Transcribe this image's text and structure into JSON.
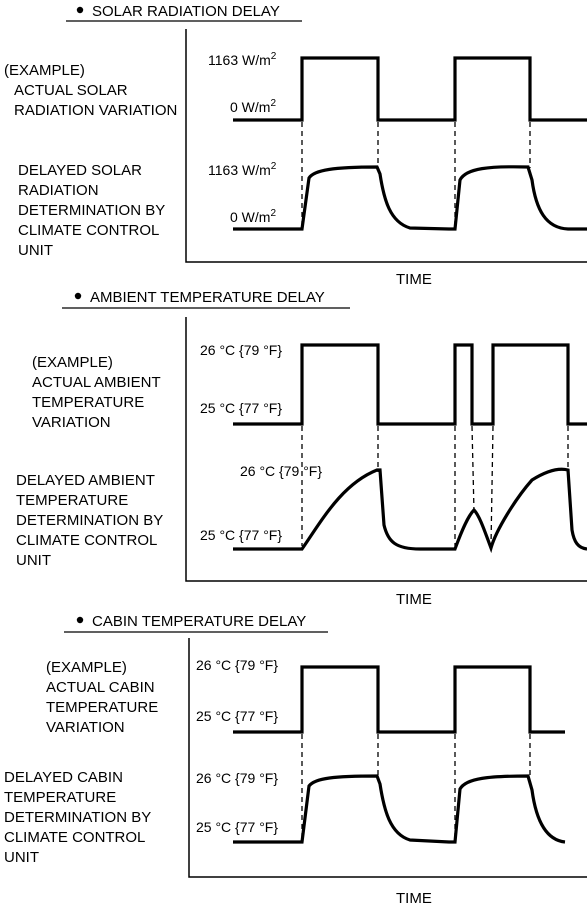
{
  "sections": [
    {
      "title": "SOLAR RADIATION DELAY",
      "actual_label": [
        "(EXAMPLE)",
        "ACTUAL SOLAR",
        "RADIATION VARIATION"
      ],
      "delayed_label": [
        "DELAYED SOLAR",
        "RADIATION",
        "DETERMINATION BY",
        "CLIMATE CONTROL",
        "UNIT"
      ],
      "actual_high": "1163 W/m",
      "actual_high_sup": "2",
      "actual_low": "0 W/m",
      "actual_low_sup": "2",
      "delayed_high": "1163 W/m",
      "delayed_high_sup": "2",
      "delayed_low": "0 W/m",
      "delayed_low_sup": "2",
      "x_axis_label": "TIME"
    },
    {
      "title": "AMBIENT TEMPERATURE DELAY",
      "actual_label": [
        "(EXAMPLE)",
        "ACTUAL AMBIENT",
        "TEMPERATURE",
        "VARIATION"
      ],
      "delayed_label": [
        "DELAYED AMBIENT",
        "TEMPERATURE",
        "DETERMINATION BY",
        "CLIMATE CONTROL",
        "UNIT"
      ],
      "actual_high": "26 °C {79 °F}",
      "actual_low": "25 °C {77 °F}",
      "delayed_high": "26 °C {79 °F}",
      "delayed_low": "25 °C {77 °F}",
      "x_axis_label": "TIME"
    },
    {
      "title": "CABIN TEMPERATURE DELAY",
      "actual_label": [
        "(EXAMPLE)",
        "ACTUAL CABIN",
        "TEMPERATURE",
        "VARIATION"
      ],
      "delayed_label": [
        "DELAYED CABIN",
        "TEMPERATURE",
        "DETERMINATION BY",
        "CLIMATE CONTROL",
        "UNIT"
      ],
      "actual_high": "26 °C {79 °F}",
      "actual_low": "25 °C {77 °F}",
      "delayed_high": "26 °C {79 °F}",
      "delayed_low": "25 °C {77 °F}",
      "x_axis_label": "TIME"
    }
  ]
}
